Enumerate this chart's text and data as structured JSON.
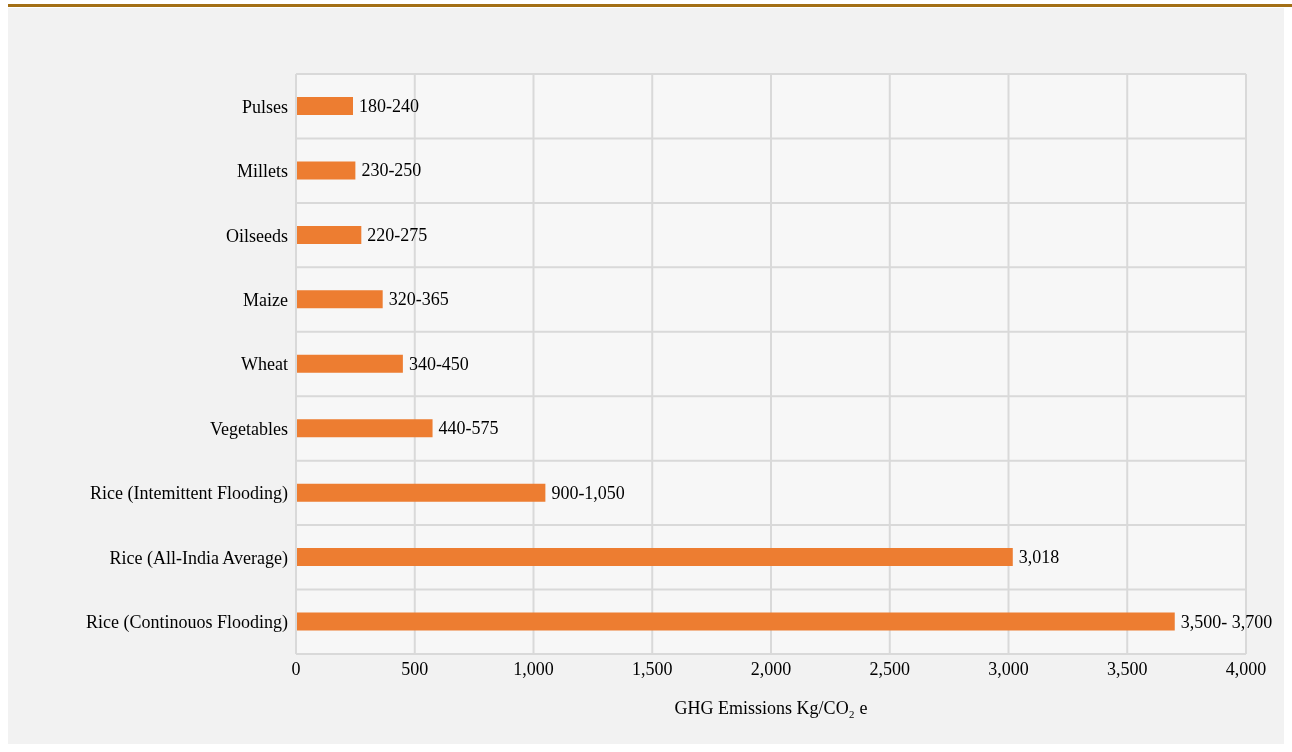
{
  "chart_data": {
    "type": "bar",
    "orientation": "horizontal",
    "xlabel": "GHG Emissions Kg/CO₂ e",
    "categories": [
      "Pulses",
      "Millets",
      "Oilseeds",
      "Maize",
      "Wheat",
      "Vegetables",
      "Rice (Intemittent Flooding)",
      "Rice (All-India Average)",
      "Rice (Continouos Flooding)"
    ],
    "values": [
      240,
      250,
      275,
      365,
      450,
      575,
      1050,
      3018,
      3700
    ],
    "value_labels": [
      "180-240",
      "230-250",
      "220-275",
      "320-365",
      "340-450",
      "440-575",
      "900-1,050",
      "3,018",
      "3,500- 3,700"
    ],
    "color": "#ed7d31",
    "xlim": [
      0,
      4000
    ],
    "xticks": [
      0,
      {
        "value": 500,
        "label": "500"
      },
      {
        "value": 1000,
        "label": "1,000"
      },
      {
        "value": 1500,
        "label": "1,500"
      },
      {
        "value": 2000,
        "label": "2,000"
      },
      {
        "value": 2500,
        "label": "2,500"
      },
      {
        "value": 3000,
        "label": "3,000"
      },
      {
        "value": 3500,
        "label": "3,500"
      },
      {
        "value": 4000,
        "label": "4,000"
      }
    ],
    "grid": true
  }
}
